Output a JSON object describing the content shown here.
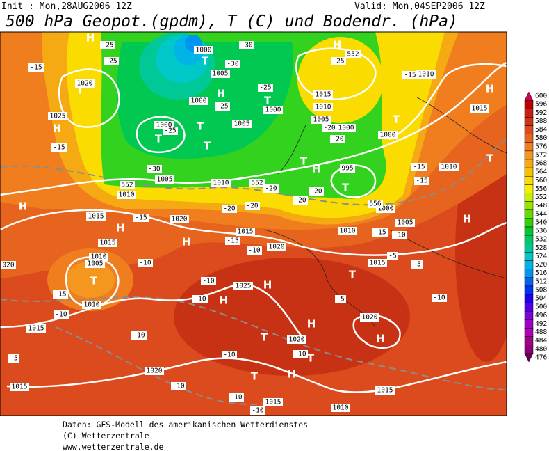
{
  "header": {
    "init": "Init : Mon,28AUG2006 12Z",
    "valid": "Valid: Mon,04SEP2006 12Z",
    "title": "500 hPa Geopot.(gpdm), T (C) und Bodendr. (hPa)"
  },
  "map": {
    "labels": [
      "H",
      "-25",
      "-25",
      "1000",
      "T",
      "-30",
      "-30",
      "H",
      "552",
      "-25",
      "1010",
      "1005",
      "-15",
      "1020",
      "T",
      "H",
      "-25",
      "1015",
      "1010",
      "T",
      "1000",
      "-15",
      "H",
      "1015",
      "1025",
      "H",
      "1000",
      "-25",
      "1000",
      "T",
      "-25",
      "1005",
      "1005",
      "-20",
      "1000",
      "T",
      "1000",
      "-15",
      "T",
      "T",
      "-20",
      "1010",
      "T",
      "-30",
      "1005",
      "1010",
      "552",
      "1010",
      "552",
      "T",
      "H",
      "995",
      "-15",
      "-15",
      "T",
      "-20",
      "-20",
      "1000",
      "556",
      "H",
      "1015",
      "-15",
      "-20",
      "-20",
      "-20",
      "H",
      "1020",
      "1005",
      "H",
      "1015",
      "1010",
      "-15",
      "-10",
      "H",
      "1015",
      "-15",
      "-10",
      "1020",
      "1010",
      "-10",
      "1005",
      "020",
      "1015",
      "-5",
      "-5",
      "T",
      "-10",
      "1025",
      "H",
      "T",
      "-15",
      "1010",
      "-10",
      "H",
      "-5",
      "-10",
      "-10",
      "1020",
      "1015",
      "-10",
      "H",
      "T",
      "1020",
      "H",
      "-5",
      "-10",
      "T",
      "-10",
      "1020",
      "T",
      "H",
      "-10",
      "1015",
      "-10",
      "1015",
      "-10",
      "1015",
      "1010"
    ]
  },
  "colorbar": {
    "levels": [
      600,
      596,
      592,
      588,
      584,
      580,
      576,
      572,
      568,
      564,
      560,
      556,
      552,
      548,
      544,
      540,
      536,
      532,
      528,
      524,
      520,
      516,
      512,
      508,
      504,
      500,
      496,
      492,
      488,
      484,
      480,
      476
    ],
    "colors": [
      "#c80064",
      "#b40000",
      "#c81e14",
      "#d23214",
      "#dc4b1e",
      "#e6641e",
      "#f07d1e",
      "#f5961e",
      "#f5aa14",
      "#f5c300",
      "#fadc00",
      "#f5f000",
      "#c8f000",
      "#96e600",
      "#64dc00",
      "#32d200",
      "#00c832",
      "#00c864",
      "#00c896",
      "#00c8c8",
      "#00b4e6",
      "#0096f0",
      "#0064f0",
      "#0032f0",
      "#1e00f0",
      "#5000e6",
      "#8200dc",
      "#a000c8",
      "#b400b4",
      "#a0008c",
      "#8c0078",
      "#64005a"
    ]
  },
  "footer": {
    "lines": [
      "Daten: GFS-Modell des amerikanischen Wetterdienstes",
      "(C) Wetterzentrale",
      "www.wetterzentrale.de"
    ]
  }
}
